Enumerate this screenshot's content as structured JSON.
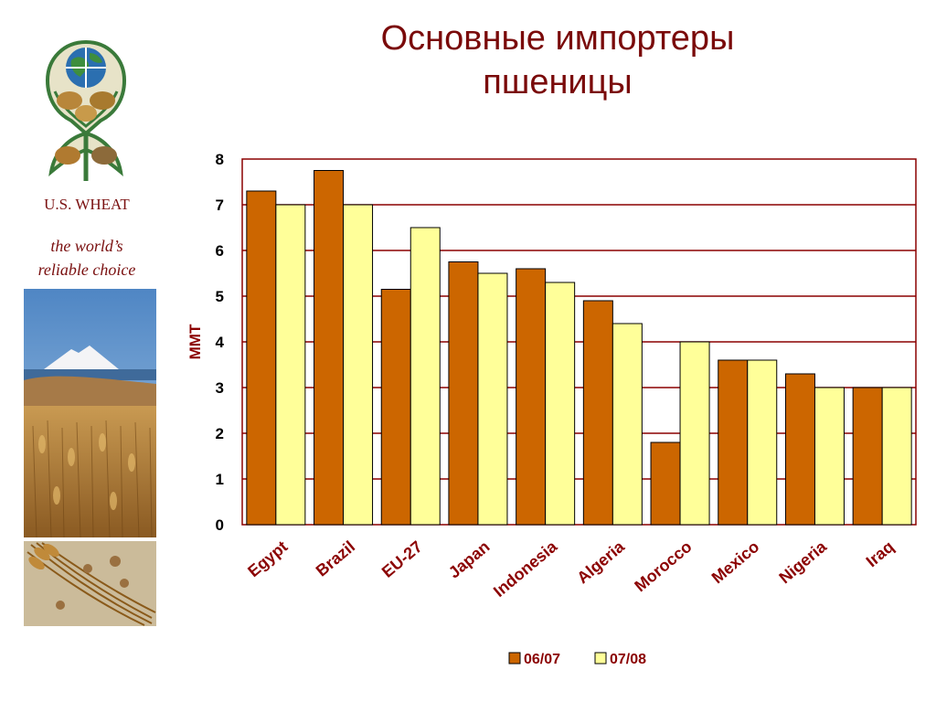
{
  "sidebar": {
    "brand": "U.S. WHEAT",
    "tagline_line1": "the world’s",
    "tagline_line2": "reliable choice"
  },
  "slide": {
    "title_line1": "Основные импортеры",
    "title_line2": "пшеницы"
  },
  "colors": {
    "series1": "#cc6600",
    "series2": "#ffff99",
    "text": "#8b0000",
    "gridline": "#8b0000"
  },
  "chart_data": {
    "type": "bar",
    "ylabel": "MMT",
    "ylim": [
      0,
      8
    ],
    "yticks": [
      0,
      1,
      2,
      3,
      4,
      5,
      6,
      7,
      8
    ],
    "grid": true,
    "legend_position": "bottom",
    "categories": [
      "Egypt",
      "Brazil",
      "EU-27",
      "Japan",
      "Indonesia",
      "Algeria",
      "Morocco",
      "Mexico",
      "Nigeria",
      "Iraq"
    ],
    "series": [
      {
        "name": "06/07",
        "values": [
          7.3,
          7.75,
          5.15,
          5.75,
          5.6,
          4.9,
          1.8,
          3.6,
          3.3,
          3.0
        ]
      },
      {
        "name": "07/08",
        "values": [
          7.0,
          7.0,
          6.5,
          5.5,
          5.3,
          4.4,
          4.0,
          3.6,
          3.0,
          3.0
        ]
      }
    ]
  }
}
